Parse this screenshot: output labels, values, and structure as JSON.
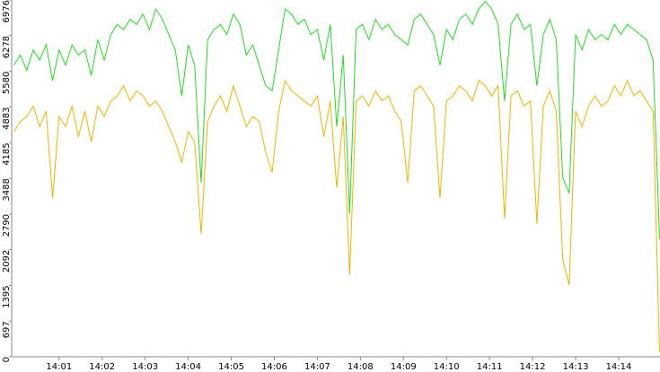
{
  "chart_data": {
    "type": "line",
    "x": [
      -0.05,
      0.1,
      0.25,
      0.4,
      0.55,
      0.7,
      0.85,
      1,
      1.15,
      1.3,
      1.45,
      1.6,
      1.75,
      1.9,
      2.05,
      2.2,
      2.35,
      2.5,
      2.65,
      2.8,
      2.95,
      3.1,
      3.25,
      3.4,
      3.55,
      3.7,
      3.85,
      4,
      4.15,
      4.3,
      4.45,
      4.6,
      4.75,
      4.9,
      5.05,
      5.2,
      5.35,
      5.5,
      5.65,
      5.8,
      5.95,
      6.1,
      6.25,
      6.4,
      6.55,
      6.7,
      6.85,
      7,
      7.15,
      7.3,
      7.45,
      7.6,
      7.75,
      7.9,
      8.05,
      8.2,
      8.35,
      8.5,
      8.65,
      8.8,
      8.95,
      9.1,
      9.25,
      9.4,
      9.55,
      9.7,
      9.85,
      10,
      10.15,
      10.3,
      10.45,
      10.6,
      10.75,
      10.9,
      11.05,
      11.2,
      11.35,
      11.5,
      11.65,
      11.8,
      11.95,
      12.1,
      12.25,
      12.4,
      12.55,
      12.7,
      12.85,
      13,
      13.15,
      13.3,
      13.45,
      13.6,
      13.75,
      13.9,
      14.05,
      14.2,
      14.35,
      14.5,
      14.65,
      14.8,
      14.95
    ],
    "series": [
      {
        "color": "#f0b400",
        "values": [
          4400,
          4600,
          4700,
          4900,
          4500,
          4800,
          3100,
          4700,
          4500,
          4900,
          4300,
          4800,
          4200,
          4900,
          4700,
          5000,
          5100,
          5300,
          5000,
          5200,
          5100,
          4900,
          5000,
          4800,
          4500,
          4200,
          3800,
          4400,
          4200,
          2400,
          4600,
          4900,
          5100,
          4800,
          5300,
          4900,
          4500,
          4700,
          4600,
          4000,
          3600,
          4800,
          5400,
          5200,
          5100,
          5000,
          4900,
          5100,
          4300,
          5000,
          3300,
          4700,
          1600,
          5000,
          5100,
          4900,
          5200,
          5000,
          5100,
          4800,
          4600,
          3400,
          5200,
          5300,
          5100,
          4900,
          3100,
          5000,
          5100,
          5300,
          5200,
          5000,
          5400,
          5300,
          5100,
          5300,
          2700,
          5100,
          5200,
          4900,
          5000,
          2600,
          4900,
          5200,
          4800,
          1900,
          1400,
          4800,
          4500,
          4900,
          5100,
          4900,
          5000,
          5300,
          5100,
          5400,
          5100,
          5200,
          5000,
          4800,
          100
        ]
      },
      {
        "color": "#22dd22",
        "values": [
          5700,
          5900,
          5600,
          6000,
          5800,
          6100,
          5400,
          6000,
          5700,
          6100,
          5900,
          6000,
          5500,
          6200,
          5800,
          6300,
          6500,
          6400,
          6600,
          6500,
          6700,
          6400,
          6800,
          6600,
          6300,
          6000,
          5100,
          6100,
          5700,
          3400,
          6200,
          6400,
          6500,
          6300,
          6700,
          6500,
          5900,
          6100,
          5700,
          5300,
          5200,
          6000,
          6800,
          6700,
          6500,
          6600,
          6300,
          6400,
          5800,
          6500,
          4500,
          5900,
          2800,
          6400,
          6500,
          6200,
          6600,
          6400,
          6500,
          6300,
          6200,
          6100,
          6600,
          6700,
          6500,
          6300,
          5700,
          6400,
          6200,
          6600,
          6700,
          6500,
          6800,
          6950,
          6800,
          6500,
          5000,
          6500,
          6700,
          6400,
          6500,
          5300,
          6300,
          6600,
          6200,
          3500,
          3200,
          6300,
          6000,
          6400,
          6200,
          6300,
          6200,
          6500,
          6300,
          6500,
          6400,
          6300,
          6200,
          5800,
          2300
        ]
      }
    ],
    "xlim": [
      -0.08,
      14.96
    ],
    "xticks": [
      {
        "value": 1,
        "label": "14:01"
      },
      {
        "value": 2,
        "label": "14:02"
      },
      {
        "value": 3,
        "label": "14:03"
      },
      {
        "value": 4,
        "label": "14:04"
      },
      {
        "value": 5,
        "label": "14:05"
      },
      {
        "value": 6,
        "label": "14:06"
      },
      {
        "value": 7,
        "label": "14:07"
      },
      {
        "value": 8,
        "label": "14:08"
      },
      {
        "value": 9,
        "label": "14:09"
      },
      {
        "value": 10,
        "label": "14:10"
      },
      {
        "value": 11,
        "label": "14:11"
      },
      {
        "value": 12,
        "label": "14:12"
      },
      {
        "value": 13,
        "label": "14:13"
      },
      {
        "value": 14,
        "label": "14:14"
      }
    ],
    "ylim": [
      0,
      6976
    ],
    "yticks": [
      0,
      697,
      1395,
      2092,
      2790,
      3488,
      4185,
      4883,
      5580,
      6278,
      6976
    ]
  }
}
